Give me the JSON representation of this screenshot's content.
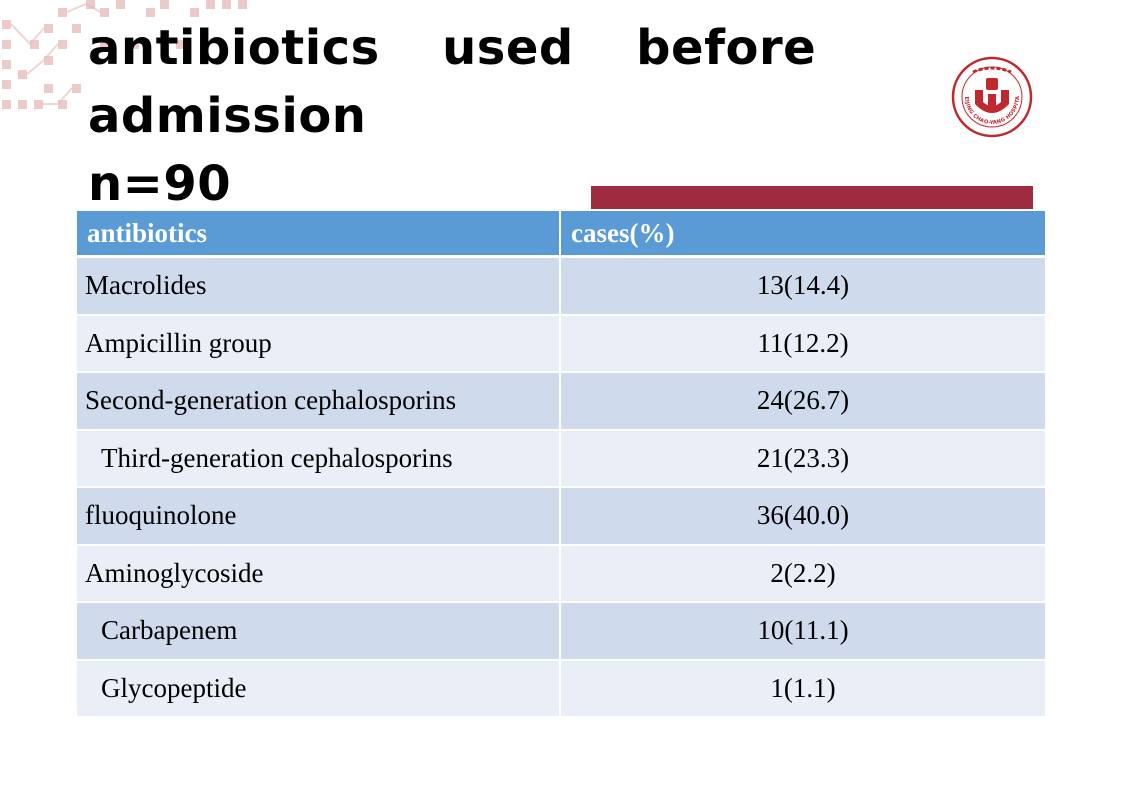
{
  "slide": {
    "title_line_1": "antibiotics  used  before",
    "title_line_2": "admission",
    "title_line_3": "n=90",
    "logo_icon": "hospital-logo-icon",
    "logo_text": "BEIJING CHAO-YANG HOSPITAL",
    "accent_color": "#9e2b3f",
    "header_color": "#5b9bd5"
  },
  "table": {
    "headers": [
      "antibiotics",
      "cases(%)"
    ],
    "rows": [
      {
        "name": "Macrolides",
        "cases": "13(14.4)"
      },
      {
        "name": "Ampicillin group",
        "cases": "11(12.2)"
      },
      {
        "name": "Second-generation cephalosporins",
        "cases": "24(26.7)"
      },
      {
        "name": "Third-generation cephalosporins",
        "cases": "21(23.3)"
      },
      {
        "name": "fluoquinolone",
        "cases": "36(40.0)"
      },
      {
        "name": "Aminoglycoside",
        "cases": "2(2.2)"
      },
      {
        "name": "Carbapenem",
        "cases": "10(11.1)"
      },
      {
        "name": "Glycopeptide",
        "cases": "1(1.1)"
      }
    ]
  }
}
